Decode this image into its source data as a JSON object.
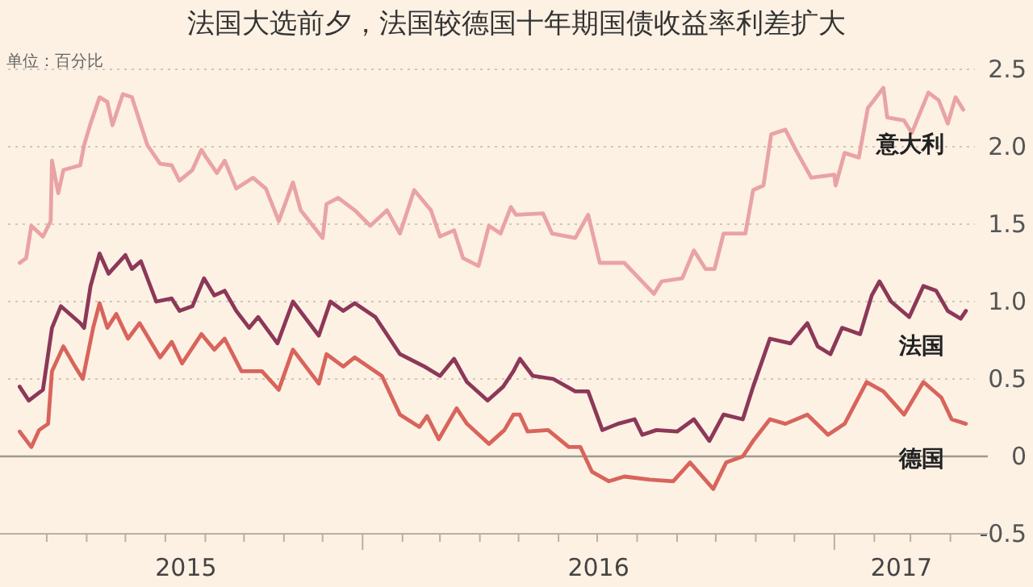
{
  "chart_data": {
    "type": "line",
    "title": "法国大选前夕，法国较德国十年期国债收益率利差扩大",
    "subtitle": "单位：百分比",
    "xlim": [
      "2015-04-01",
      "2017-04-20"
    ],
    "ylim": [
      -0.5,
      2.5
    ],
    "yticks": [
      -0.5,
      0,
      0.5,
      {
        "value": 1,
        "label": "1.0"
      },
      1.5,
      {
        "value": 2,
        "label": "2.0"
      },
      2.5
    ],
    "xticks": [
      {
        "value": "2015-05-01",
        "label": null
      },
      {
        "value": "2015-06-01",
        "label": null
      },
      {
        "value": "2015-07-01",
        "label": null
      },
      {
        "value": "2015-08-01",
        "label": null
      },
      {
        "value": "2015-09-01",
        "label": null
      },
      {
        "value": "2015-10-01",
        "label": null
      },
      {
        "value": "2015-11-01",
        "label": null
      },
      {
        "value": "2015-12-01",
        "label": null
      },
      {
        "value": "2016-01-01",
        "label": null
      },
      {
        "value": "2016-02-01",
        "label": null
      },
      {
        "value": "2016-03-01",
        "label": null
      },
      {
        "value": "2016-04-01",
        "label": null
      },
      {
        "value": "2016-05-01",
        "label": null
      },
      {
        "value": "2016-06-01",
        "label": null
      },
      {
        "value": "2016-07-01",
        "label": null
      },
      {
        "value": "2016-08-01",
        "label": null
      },
      {
        "value": "2016-09-01",
        "label": null
      },
      {
        "value": "2016-10-01",
        "label": null
      },
      {
        "value": "2016-11-01",
        "label": null
      },
      {
        "value": "2016-12-01",
        "label": null
      },
      {
        "value": "2017-01-01",
        "label": null
      },
      {
        "value": "2017-02-01",
        "label": null
      },
      {
        "value": "2017-03-01",
        "label": null
      },
      {
        "value": "2017-04-01",
        "label": null
      },
      {
        "value": "2015-08-17",
        "label": "2015"
      },
      {
        "value": "2016-07-02",
        "label": "2016"
      },
      {
        "value": "2017-02-22",
        "label": "2017"
      }
    ],
    "grid": "y",
    "ref_lines": [
      {
        "axis": "y",
        "value": 0,
        "color": "#a09a90"
      }
    ],
    "line_style": "solid",
    "series": [
      {
        "name": "意大利",
        "color": "#e9a3a5",
        "x": [
          "2015-04-10",
          "2015-04-15",
          "2015-04-19",
          "2015-04-28",
          "2015-05-04",
          "2015-05-05",
          "2015-05-10",
          "2015-05-14",
          "2015-05-27",
          "2015-05-30",
          "2015-06-04",
          "2015-06-11",
          "2015-06-17",
          "2015-06-21",
          "2015-06-29",
          "2015-07-06",
          "2015-07-18",
          "2015-07-28",
          "2015-08-06",
          "2015-08-12",
          "2015-08-22",
          "2015-08-29",
          "2015-09-01",
          "2015-09-10",
          "2015-09-16",
          "2015-09-25",
          "2015-10-08",
          "2015-10-18",
          "2015-10-28",
          "2015-11-08",
          "2015-11-14",
          "2015-12-01",
          "2015-12-04",
          "2015-12-13",
          "2015-12-26",
          "2016-01-07",
          "2016-01-20",
          "2016-01-30",
          "2016-02-10",
          "2016-02-23",
          "2016-03-01",
          "2016-03-12",
          "2016-03-19",
          "2016-03-31",
          "2016-04-08",
          "2016-04-17",
          "2016-04-25",
          "2016-04-29",
          "2016-05-20",
          "2016-05-27",
          "2016-06-14",
          "2016-06-24",
          "2016-07-03",
          "2016-07-22",
          "2016-08-14",
          "2016-08-20",
          "2016-09-05",
          "2016-09-14",
          "2016-09-23",
          "2016-09-30",
          "2016-10-07",
          "2016-10-24",
          "2016-10-30",
          "2016-11-07",
          "2016-11-13",
          "2016-11-24",
          "2016-12-02",
          "2016-12-14",
          "2017-01-01",
          "2017-01-02",
          "2017-01-09",
          "2017-01-20",
          "2017-01-27",
          "2017-02-08",
          "2017-02-11",
          "2017-02-24",
          "2017-03-02",
          "2017-03-15",
          "2017-03-23",
          "2017-03-30",
          "2017-04-05",
          "2017-04-11"
        ],
        "values": [
          1.25,
          1.28,
          1.49,
          1.42,
          1.52,
          1.91,
          1.7,
          1.85,
          1.88,
          2.01,
          2.15,
          2.32,
          2.29,
          2.14,
          2.34,
          2.32,
          2.01,
          1.89,
          1.88,
          1.78,
          1.85,
          1.98,
          1.94,
          1.83,
          1.91,
          1.73,
          1.8,
          1.73,
          1.52,
          1.77,
          1.59,
          1.41,
          1.63,
          1.67,
          1.59,
          1.49,
          1.59,
          1.44,
          1.72,
          1.59,
          1.42,
          1.46,
          1.28,
          1.23,
          1.49,
          1.44,
          1.61,
          1.56,
          1.57,
          1.44,
          1.41,
          1.56,
          1.25,
          1.25,
          1.05,
          1.13,
          1.15,
          1.33,
          1.21,
          1.21,
          1.44,
          1.44,
          1.72,
          1.75,
          2.08,
          2.11,
          1.98,
          1.8,
          1.82,
          1.75,
          1.96,
          1.93,
          2.25,
          2.38,
          2.19,
          2.17,
          2.09,
          2.35,
          2.3,
          2.15,
          2.32,
          2.24
        ]
      },
      {
        "name": "法国",
        "color": "#8c3858",
        "x": [
          "2015-04-10",
          "2015-04-17",
          "2015-04-28",
          "2015-05-05",
          "2015-05-12",
          "2015-05-27",
          "2015-05-30",
          "2015-06-04",
          "2015-06-11",
          "2015-06-18",
          "2015-07-01",
          "2015-07-06",
          "2015-07-13",
          "2015-07-25",
          "2015-08-06",
          "2015-08-12",
          "2015-08-22",
          "2015-08-31",
          "2015-09-08",
          "2015-09-16",
          "2015-09-25",
          "2015-10-05",
          "2015-10-12",
          "2015-10-27",
          "2015-11-08",
          "2015-11-28",
          "2015-12-07",
          "2015-12-17",
          "2015-12-26",
          "2016-01-11",
          "2016-01-30",
          "2016-02-18",
          "2016-03-01",
          "2016-03-12",
          "2016-03-22",
          "2016-04-07",
          "2016-04-19",
          "2016-04-27",
          "2016-05-02",
          "2016-05-12",
          "2016-05-28",
          "2016-06-14",
          "2016-06-24",
          "2016-07-05",
          "2016-07-17",
          "2016-07-30",
          "2016-08-05",
          "2016-08-16",
          "2016-09-01",
          "2016-09-14",
          "2016-09-26",
          "2016-10-07",
          "2016-10-22",
          "2016-10-30",
          "2016-11-12",
          "2016-11-28",
          "2016-12-11",
          "2016-12-19",
          "2016-12-29",
          "2017-01-07",
          "2017-01-21",
          "2017-01-30",
          "2017-02-05",
          "2017-02-14",
          "2017-02-28",
          "2017-03-11",
          "2017-03-21",
          "2017-03-30",
          "2017-04-09",
          "2017-04-13"
        ],
        "values": [
          0.45,
          0.36,
          0.43,
          0.83,
          0.97,
          0.86,
          0.83,
          1.1,
          1.31,
          1.18,
          1.3,
          1.21,
          1.26,
          1.0,
          1.02,
          0.94,
          0.97,
          1.15,
          1.04,
          1.07,
          0.94,
          0.83,
          0.9,
          0.73,
          1.0,
          0.78,
          1.0,
          0.94,
          0.99,
          0.9,
          0.66,
          0.58,
          0.52,
          0.63,
          0.48,
          0.36,
          0.45,
          0.55,
          0.63,
          0.52,
          0.5,
          0.42,
          0.42,
          0.17,
          0.21,
          0.24,
          0.14,
          0.17,
          0.16,
          0.24,
          0.1,
          0.27,
          0.24,
          0.45,
          0.76,
          0.73,
          0.86,
          0.71,
          0.66,
          0.83,
          0.79,
          1.04,
          1.13,
          1.0,
          0.9,
          1.1,
          1.07,
          0.94,
          0.89,
          0.94
        ]
      },
      {
        "name": "德国",
        "color": "#d8645c",
        "x": [
          "2015-04-10",
          "2015-04-19",
          "2015-04-25",
          "2015-05-02",
          "2015-05-05",
          "2015-05-14",
          "2015-05-23",
          "2015-05-29",
          "2015-06-06",
          "2015-06-11",
          "2015-06-17",
          "2015-06-24",
          "2015-07-03",
          "2015-07-12",
          "2015-07-28",
          "2015-08-06",
          "2015-08-14",
          "2015-08-29",
          "2015-09-08",
          "2015-09-16",
          "2015-09-29",
          "2015-10-15",
          "2015-10-28",
          "2015-11-08",
          "2015-11-28",
          "2015-12-04",
          "2015-12-17",
          "2015-12-26",
          "2016-01-16",
          "2016-01-30",
          "2016-02-14",
          "2016-02-20",
          "2016-02-29",
          "2016-03-14",
          "2016-03-22",
          "2016-04-08",
          "2016-04-20",
          "2016-04-27",
          "2016-05-02",
          "2016-05-08",
          "2016-05-24",
          "2016-06-09",
          "2016-06-18",
          "2016-06-27",
          "2016-07-10",
          "2016-07-22",
          "2016-08-11",
          "2016-08-29",
          "2016-09-11",
          "2016-09-29",
          "2016-10-09",
          "2016-10-22",
          "2016-10-30",
          "2016-11-12",
          "2016-11-24",
          "2016-12-11",
          "2016-12-27",
          "2017-01-09",
          "2017-01-26",
          "2017-02-08",
          "2017-02-24",
          "2017-03-11",
          "2017-03-25",
          "2017-04-02",
          "2017-04-13"
        ],
        "values": [
          0.16,
          0.06,
          0.17,
          0.21,
          0.55,
          0.71,
          0.58,
          0.5,
          0.83,
          0.99,
          0.83,
          0.92,
          0.76,
          0.86,
          0.64,
          0.74,
          0.6,
          0.79,
          0.69,
          0.76,
          0.55,
          0.55,
          0.43,
          0.69,
          0.47,
          0.66,
          0.58,
          0.64,
          0.52,
          0.27,
          0.19,
          0.26,
          0.11,
          0.31,
          0.21,
          0.08,
          0.17,
          0.27,
          0.27,
          0.16,
          0.17,
          0.06,
          0.06,
          -0.1,
          -0.16,
          -0.13,
          -0.15,
          -0.16,
          -0.04,
          -0.21,
          -0.04,
          0.0,
          0.1,
          0.24,
          0.21,
          0.27,
          0.14,
          0.21,
          0.48,
          0.42,
          0.27,
          0.48,
          0.38,
          0.24,
          0.21
        ]
      }
    ]
  }
}
